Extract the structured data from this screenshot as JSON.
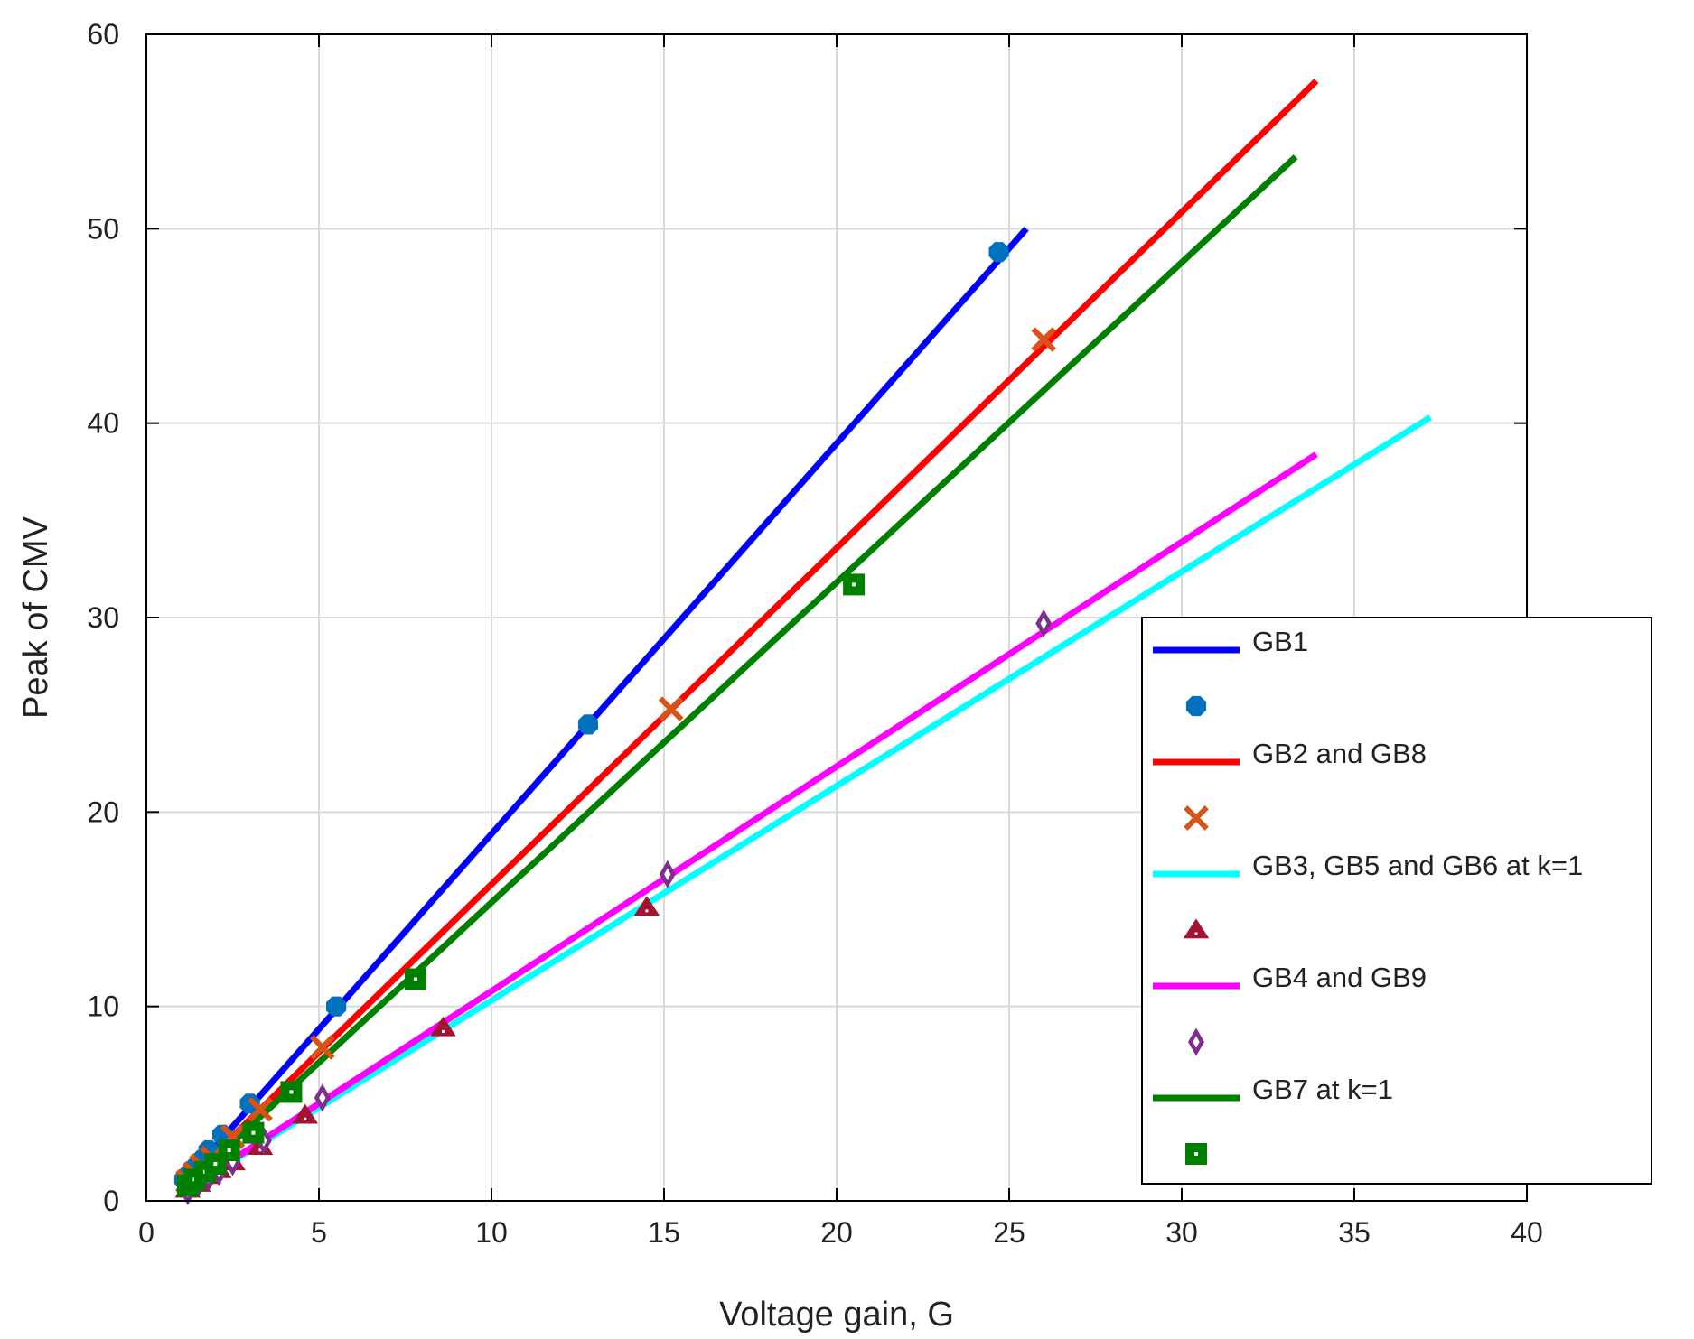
{
  "chart_data": {
    "type": "line",
    "title": "",
    "xlabel": "Voltage gain, G",
    "ylabel": "Peak of CMV",
    "xlim": [
      0,
      40
    ],
    "ylim": [
      0,
      60
    ],
    "xticks": [
      0,
      5,
      10,
      15,
      20,
      25,
      30,
      35,
      40
    ],
    "yticks": [
      0,
      10,
      20,
      30,
      40,
      50,
      60
    ],
    "grid": true,
    "legend_position": "center-right",
    "series": [
      {
        "name": "GB1",
        "color": "#0000ff",
        "line": {
          "x": [
            1.1,
            25.5
          ],
          "y": [
            1.0,
            50.0
          ]
        },
        "marker": "circle",
        "marker_color": "#0072bd",
        "points": {
          "x": [
            1.1,
            1.2,
            1.4,
            1.6,
            1.8,
            2.2,
            3.0,
            5.5,
            12.8,
            24.7
          ],
          "y": [
            1.1,
            1.3,
            1.7,
            2.1,
            2.6,
            3.4,
            5.0,
            10.0,
            24.5,
            48.8
          ]
        }
      },
      {
        "name": "GB2 and GB8",
        "color": "#ff0000",
        "line": {
          "x": [
            1.1,
            33.9
          ],
          "y": [
            0.9,
            57.6
          ]
        },
        "marker": "x",
        "marker_color": "#d95319",
        "points": {
          "x": [
            1.2,
            1.4,
            1.6,
            1.9,
            2.5,
            3.3,
            5.1,
            15.2,
            26.0
          ],
          "y": [
            1.0,
            1.4,
            1.8,
            2.2,
            3.3,
            4.7,
            7.9,
            25.3,
            44.3
          ]
        }
      },
      {
        "name": "GB3, GB5 and GB6 at k=1",
        "color": "#00ffff",
        "line": {
          "x": [
            1.1,
            37.2
          ],
          "y": [
            0.5,
            40.3
          ]
        },
        "marker": "triangle",
        "marker_color": "#a2142f",
        "points": {
          "x": [
            1.2,
            1.5,
            1.8,
            2.1,
            2.5,
            3.3,
            4.6,
            8.6,
            14.5
          ],
          "y": [
            0.6,
            0.9,
            1.3,
            1.6,
            2.0,
            2.8,
            4.4,
            8.9,
            15.1
          ]
        }
      },
      {
        "name": "GB4 and GB9",
        "color": "#ff00ff",
        "line": {
          "x": [
            1.1,
            33.9
          ],
          "y": [
            0.5,
            38.4
          ]
        },
        "marker": "diamond",
        "marker_color": "#7e2f8e",
        "points": {
          "x": [
            1.2,
            1.5,
            1.8,
            2.1,
            2.5,
            3.4,
            5.1,
            15.1,
            26.0
          ],
          "y": [
            0.5,
            0.9,
            1.2,
            1.5,
            2.0,
            3.1,
            5.3,
            16.8,
            29.7
          ]
        }
      },
      {
        "name": "GB7 at k=1",
        "color": "#008000",
        "line": {
          "x": [
            1.1,
            33.3
          ],
          "y": [
            0.7,
            53.7
          ]
        },
        "marker": "square",
        "marker_color": "#008000",
        "points": {
          "x": [
            1.2,
            1.4,
            1.7,
            2.0,
            2.4,
            3.1,
            4.2,
            7.8,
            20.5
          ],
          "y": [
            0.8,
            1.1,
            1.5,
            1.9,
            2.6,
            3.5,
            5.6,
            11.4,
            31.7
          ]
        }
      }
    ]
  }
}
